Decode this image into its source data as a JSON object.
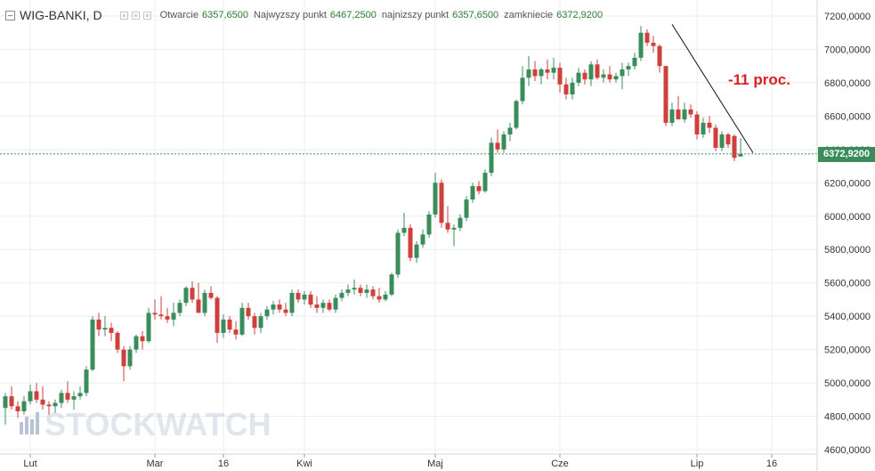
{
  "header": {
    "symbol": "WIG-BANKI, D",
    "open_label": "Otwarcie",
    "open_value": "6357,6500",
    "high_label": "Najwyzszy punkt",
    "high_value": "6467,2500",
    "low_label": "najnizszy punkt",
    "low_value": "6357,6500",
    "close_label": "zamkniecie",
    "close_value": "6372,9200"
  },
  "last_price_label": "6372,9200",
  "annotation": "-11 proc.",
  "watermark": "STOCKWATCH",
  "colors": {
    "up": "#3b8c5c",
    "down": "#cf3f3b",
    "line": "#3b8c5c",
    "annotation": "#dd1f1f",
    "grid": "#eeeeee"
  },
  "chart_data": {
    "type": "candlestick",
    "ylim": [
      4600,
      7250
    ],
    "yticks": [
      "4600,0000",
      "4800,0000",
      "5000,0000",
      "5200,0000",
      "5400,0000",
      "5600,0000",
      "5800,0000",
      "6000,0000",
      "6200,0000",
      "6400,0000",
      "6600,0000",
      "6800,0000",
      "7000,0000",
      "7200,0000"
    ],
    "xticks": [
      "Lut",
      "Mar",
      "16",
      "Kwi",
      "Maj",
      "Cze",
      "Lip",
      "16"
    ],
    "last_price": 6372.92,
    "trendline": [
      {
        "i": 107,
        "v": 7150
      },
      {
        "i": 120,
        "v": 6380
      }
    ],
    "candles": [
      {
        "o": 4850,
        "h": 4940,
        "l": 4750,
        "c": 4920
      },
      {
        "o": 4920,
        "h": 4980,
        "l": 4840,
        "c": 4860
      },
      {
        "o": 4860,
        "h": 4890,
        "l": 4790,
        "c": 4830
      },
      {
        "o": 4830,
        "h": 4920,
        "l": 4810,
        "c": 4890
      },
      {
        "o": 4890,
        "h": 4990,
        "l": 4870,
        "c": 4950
      },
      {
        "o": 4950,
        "h": 5000,
        "l": 4880,
        "c": 4900
      },
      {
        "o": 4900,
        "h": 4980,
        "l": 4840,
        "c": 4870
      },
      {
        "o": 4870,
        "h": 4890,
        "l": 4810,
        "c": 4860
      },
      {
        "o": 4860,
        "h": 4900,
        "l": 4820,
        "c": 4880
      },
      {
        "o": 4880,
        "h": 4960,
        "l": 4850,
        "c": 4940
      },
      {
        "o": 4940,
        "h": 5010,
        "l": 4880,
        "c": 4900
      },
      {
        "o": 4900,
        "h": 4950,
        "l": 4840,
        "c": 4920
      },
      {
        "o": 4920,
        "h": 4980,
        "l": 4900,
        "c": 4940
      },
      {
        "o": 4940,
        "h": 5100,
        "l": 4920,
        "c": 5080
      },
      {
        "o": 5080,
        "h": 5400,
        "l": 5070,
        "c": 5380
      },
      {
        "o": 5380,
        "h": 5420,
        "l": 5280,
        "c": 5320
      },
      {
        "o": 5320,
        "h": 5400,
        "l": 5280,
        "c": 5330
      },
      {
        "o": 5330,
        "h": 5360,
        "l": 5250,
        "c": 5300
      },
      {
        "o": 5300,
        "h": 5310,
        "l": 5180,
        "c": 5200
      },
      {
        "o": 5200,
        "h": 5220,
        "l": 5010,
        "c": 5100
      },
      {
        "o": 5100,
        "h": 5220,
        "l": 5080,
        "c": 5200
      },
      {
        "o": 5200,
        "h": 5290,
        "l": 5180,
        "c": 5280
      },
      {
        "o": 5280,
        "h": 5310,
        "l": 5200,
        "c": 5250
      },
      {
        "o": 5250,
        "h": 5450,
        "l": 5240,
        "c": 5420
      },
      {
        "o": 5420,
        "h": 5500,
        "l": 5380,
        "c": 5410
      },
      {
        "o": 5410,
        "h": 5520,
        "l": 5380,
        "c": 5400
      },
      {
        "o": 5400,
        "h": 5450,
        "l": 5360,
        "c": 5380
      },
      {
        "o": 5380,
        "h": 5480,
        "l": 5340,
        "c": 5420
      },
      {
        "o": 5420,
        "h": 5500,
        "l": 5400,
        "c": 5480
      },
      {
        "o": 5480,
        "h": 5580,
        "l": 5460,
        "c": 5570
      },
      {
        "o": 5570,
        "h": 5610,
        "l": 5480,
        "c": 5500
      },
      {
        "o": 5500,
        "h": 5600,
        "l": 5430,
        "c": 5420
      },
      {
        "o": 5420,
        "h": 5560,
        "l": 5400,
        "c": 5540
      },
      {
        "o": 5540,
        "h": 5580,
        "l": 5500,
        "c": 5510
      },
      {
        "o": 5510,
        "h": 5520,
        "l": 5240,
        "c": 5300
      },
      {
        "o": 5300,
        "h": 5410,
        "l": 5270,
        "c": 5380
      },
      {
        "o": 5380,
        "h": 5400,
        "l": 5300,
        "c": 5320
      },
      {
        "o": 5320,
        "h": 5370,
        "l": 5260,
        "c": 5290
      },
      {
        "o": 5290,
        "h": 5480,
        "l": 5280,
        "c": 5450
      },
      {
        "o": 5450,
        "h": 5480,
        "l": 5380,
        "c": 5400
      },
      {
        "o": 5400,
        "h": 5420,
        "l": 5290,
        "c": 5330
      },
      {
        "o": 5330,
        "h": 5420,
        "l": 5300,
        "c": 5400
      },
      {
        "o": 5400,
        "h": 5460,
        "l": 5380,
        "c": 5440
      },
      {
        "o": 5440,
        "h": 5490,
        "l": 5410,
        "c": 5470
      },
      {
        "o": 5470,
        "h": 5500,
        "l": 5420,
        "c": 5440
      },
      {
        "o": 5440,
        "h": 5480,
        "l": 5400,
        "c": 5420
      },
      {
        "o": 5420,
        "h": 5560,
        "l": 5400,
        "c": 5540
      },
      {
        "o": 5540,
        "h": 5560,
        "l": 5480,
        "c": 5500
      },
      {
        "o": 5500,
        "h": 5550,
        "l": 5470,
        "c": 5530
      },
      {
        "o": 5530,
        "h": 5550,
        "l": 5450,
        "c": 5470
      },
      {
        "o": 5470,
        "h": 5520,
        "l": 5420,
        "c": 5450
      },
      {
        "o": 5450,
        "h": 5500,
        "l": 5420,
        "c": 5480
      },
      {
        "o": 5480,
        "h": 5500,
        "l": 5430,
        "c": 5440
      },
      {
        "o": 5440,
        "h": 5530,
        "l": 5420,
        "c": 5510
      },
      {
        "o": 5510,
        "h": 5560,
        "l": 5490,
        "c": 5540
      },
      {
        "o": 5540,
        "h": 5590,
        "l": 5520,
        "c": 5560
      },
      {
        "o": 5560,
        "h": 5620,
        "l": 5530,
        "c": 5570
      },
      {
        "o": 5570,
        "h": 5590,
        "l": 5520,
        "c": 5540
      },
      {
        "o": 5540,
        "h": 5590,
        "l": 5510,
        "c": 5560
      },
      {
        "o": 5560,
        "h": 5580,
        "l": 5500,
        "c": 5520
      },
      {
        "o": 5520,
        "h": 5570,
        "l": 5480,
        "c": 5500
      },
      {
        "o": 5500,
        "h": 5550,
        "l": 5490,
        "c": 5530
      },
      {
        "o": 5530,
        "h": 5660,
        "l": 5520,
        "c": 5650
      },
      {
        "o": 5650,
        "h": 5920,
        "l": 5630,
        "c": 5900
      },
      {
        "o": 5900,
        "h": 6020,
        "l": 5880,
        "c": 5930
      },
      {
        "o": 5930,
        "h": 5950,
        "l": 5730,
        "c": 5750
      },
      {
        "o": 5750,
        "h": 5850,
        "l": 5720,
        "c": 5830
      },
      {
        "o": 5830,
        "h": 5920,
        "l": 5810,
        "c": 5890
      },
      {
        "o": 5890,
        "h": 6030,
        "l": 5870,
        "c": 6010
      },
      {
        "o": 6010,
        "h": 6260,
        "l": 5990,
        "c": 6200
      },
      {
        "o": 6200,
        "h": 6220,
        "l": 5930,
        "c": 5960
      },
      {
        "o": 5960,
        "h": 6060,
        "l": 5900,
        "c": 5920
      },
      {
        "o": 5920,
        "h": 5950,
        "l": 5820,
        "c": 5930
      },
      {
        "o": 5930,
        "h": 6010,
        "l": 5910,
        "c": 5990
      },
      {
        "o": 5990,
        "h": 6120,
        "l": 5970,
        "c": 6100
      },
      {
        "o": 6100,
        "h": 6200,
        "l": 6080,
        "c": 6180
      },
      {
        "o": 6180,
        "h": 6210,
        "l": 6130,
        "c": 6150
      },
      {
        "o": 6150,
        "h": 6280,
        "l": 6140,
        "c": 6260
      },
      {
        "o": 6260,
        "h": 6470,
        "l": 6240,
        "c": 6440
      },
      {
        "o": 6440,
        "h": 6520,
        "l": 6380,
        "c": 6400
      },
      {
        "o": 6400,
        "h": 6510,
        "l": 6380,
        "c": 6490
      },
      {
        "o": 6490,
        "h": 6560,
        "l": 6450,
        "c": 6530
      },
      {
        "o": 6530,
        "h": 6700,
        "l": 6520,
        "c": 6690
      },
      {
        "o": 6690,
        "h": 6900,
        "l": 6670,
        "c": 6830
      },
      {
        "o": 6830,
        "h": 6960,
        "l": 6780,
        "c": 6880
      },
      {
        "o": 6880,
        "h": 6930,
        "l": 6810,
        "c": 6840
      },
      {
        "o": 6840,
        "h": 6890,
        "l": 6790,
        "c": 6880
      },
      {
        "o": 6880,
        "h": 6940,
        "l": 6820,
        "c": 6860
      },
      {
        "o": 6860,
        "h": 6950,
        "l": 6820,
        "c": 6890
      },
      {
        "o": 6890,
        "h": 6920,
        "l": 6740,
        "c": 6790
      },
      {
        "o": 6790,
        "h": 6830,
        "l": 6700,
        "c": 6730
      },
      {
        "o": 6730,
        "h": 6830,
        "l": 6700,
        "c": 6800
      },
      {
        "o": 6800,
        "h": 6890,
        "l": 6780,
        "c": 6860
      },
      {
        "o": 6860,
        "h": 6880,
        "l": 6790,
        "c": 6820
      },
      {
        "o": 6820,
        "h": 6930,
        "l": 6780,
        "c": 6910
      },
      {
        "o": 6910,
        "h": 6940,
        "l": 6820,
        "c": 6830
      },
      {
        "o": 6830,
        "h": 6880,
        "l": 6800,
        "c": 6850
      },
      {
        "o": 6850,
        "h": 6900,
        "l": 6800,
        "c": 6820
      },
      {
        "o": 6820,
        "h": 6860,
        "l": 6800,
        "c": 6840
      },
      {
        "o": 6840,
        "h": 6920,
        "l": 6760,
        "c": 6880
      },
      {
        "o": 6880,
        "h": 6920,
        "l": 6840,
        "c": 6900
      },
      {
        "o": 6900,
        "h": 6980,
        "l": 6880,
        "c": 6950
      },
      {
        "o": 6950,
        "h": 7140,
        "l": 6930,
        "c": 7100
      },
      {
        "o": 7100,
        "h": 7120,
        "l": 7020,
        "c": 7040
      },
      {
        "o": 7040,
        "h": 7080,
        "l": 6980,
        "c": 7020
      },
      {
        "o": 7020,
        "h": 7030,
        "l": 6860,
        "c": 6900
      },
      {
        "o": 6900,
        "h": 6900,
        "l": 6540,
        "c": 6560
      },
      {
        "o": 6560,
        "h": 6680,
        "l": 6540,
        "c": 6640
      },
      {
        "o": 6640,
        "h": 6720,
        "l": 6600,
        "c": 6580
      },
      {
        "o": 6580,
        "h": 6680,
        "l": 6560,
        "c": 6640
      },
      {
        "o": 6640,
        "h": 6670,
        "l": 6590,
        "c": 6610
      },
      {
        "o": 6610,
        "h": 6630,
        "l": 6460,
        "c": 6490
      },
      {
        "o": 6490,
        "h": 6590,
        "l": 6470,
        "c": 6560
      },
      {
        "o": 6560,
        "h": 6600,
        "l": 6500,
        "c": 6530
      },
      {
        "o": 6530,
        "h": 6550,
        "l": 6390,
        "c": 6410
      },
      {
        "o": 6410,
        "h": 6510,
        "l": 6390,
        "c": 6490
      },
      {
        "o": 6490,
        "h": 6500,
        "l": 6410,
        "c": 6430
      },
      {
        "o": 6480,
        "h": 6490,
        "l": 6330,
        "c": 6350
      },
      {
        "o": 6357.65,
        "h": 6467.25,
        "l": 6357.65,
        "c": 6372.92
      }
    ]
  }
}
